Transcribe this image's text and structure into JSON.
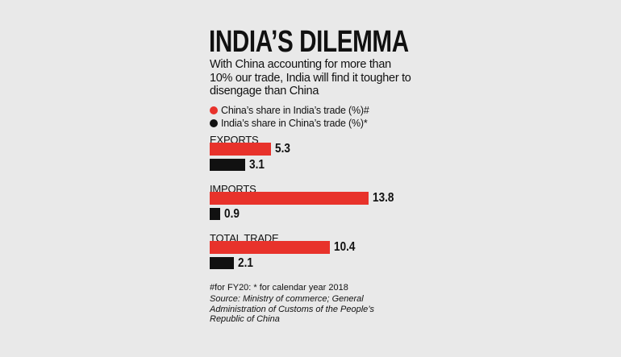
{
  "chart_data": {
    "type": "bar",
    "orientation": "horizontal",
    "title": "INDIA’S DILEMMA",
    "subtitle": "With China accounting for more than 10% our trade, India will find it tougher to disengage than China",
    "categories": [
      "EXPORTS",
      "IMPORTS",
      "TOTAL TRADE"
    ],
    "series": [
      {
        "name": "China’s share in India’s trade (%)#",
        "color": "#e8322b",
        "values": [
          5.3,
          13.8,
          10.4
        ]
      },
      {
        "name": "India’s share in China’s trade (%)*",
        "color": "#111111",
        "values": [
          3.1,
          0.9,
          2.1
        ]
      }
    ],
    "footnote": "#for FY20:  * for calendar year 2018",
    "source": "Source: Ministry of commerce; General Administration of Customs of the People’s Republic of China"
  }
}
